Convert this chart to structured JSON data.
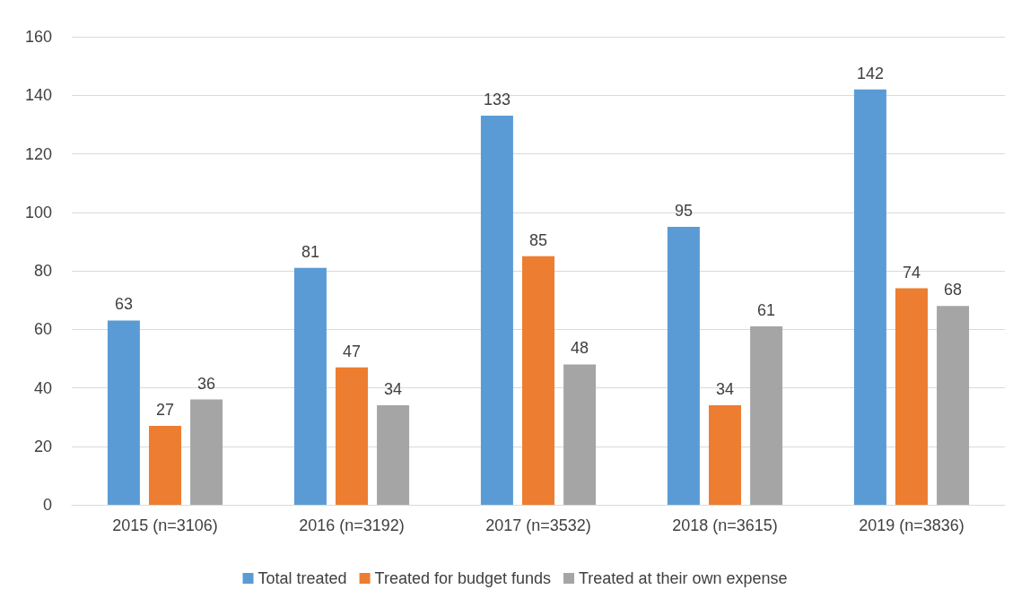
{
  "chart_data": {
    "type": "bar",
    "categories": [
      "2015 (n=3106)",
      "2016 (n=3192)",
      "2017 (n=3532)",
      "2018 (n=3615)",
      "2019 (n=3836)"
    ],
    "series": [
      {
        "name": "Total treated",
        "color": "#5b9bd5",
        "values": [
          63,
          81,
          133,
          95,
          142
        ]
      },
      {
        "name": "Treated for budget funds",
        "color": "#ed7d31",
        "values": [
          27,
          47,
          85,
          34,
          74
        ]
      },
      {
        "name": "Treated at their own expense",
        "color": "#a5a5a5",
        "values": [
          36,
          34,
          48,
          61,
          68
        ]
      }
    ],
    "ylim": [
      0,
      160
    ],
    "yticks": [
      0,
      20,
      40,
      60,
      80,
      100,
      120,
      140,
      160
    ],
    "grid": "y",
    "legend": "bottom",
    "data_labels": true
  }
}
